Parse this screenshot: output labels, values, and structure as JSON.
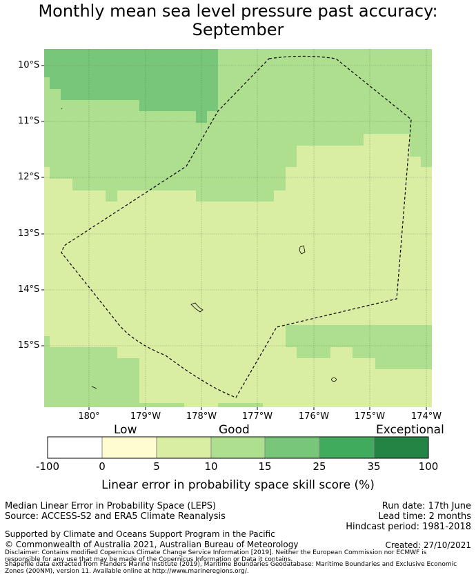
{
  "title_line1": "Monthly mean sea level pressure past accuracy:",
  "title_line2": "September",
  "map": {
    "lat_labels": [
      "10°S",
      "11°S",
      "12°S",
      "13°S",
      "14°S",
      "15°S"
    ],
    "lon_labels": [
      "180°",
      "179°W",
      "178°W",
      "177°W",
      "176°W",
      "175°W",
      "174°W"
    ],
    "category_colors": {
      "poor": "#ffffff",
      "low": "#fffdd0",
      "fair": "#d9edA3",
      "good": "#addf8f",
      "very_good": "#78c679",
      "high": "#41ab5d",
      "exceptional": "#238443"
    }
  },
  "colorbar": {
    "categories": [
      "Low",
      "Good",
      "Exceptional"
    ],
    "ticks": [
      "-100",
      "0",
      "5",
      "10",
      "15",
      "25",
      "35",
      "100"
    ],
    "colors": [
      "#ffffff",
      "#fffdd0",
      "#d9eda3",
      "#addf8f",
      "#78c679",
      "#41ab5d",
      "#238443"
    ],
    "label": "Linear error in probability space skill score (%)"
  },
  "info": {
    "method": "Median Linear Error in Probability Space (LEPS)",
    "source": "Source: ACCESS-S2 and ERA5 Climate Reanalysis",
    "run_date": "Run date: 17th June",
    "lead_time": "Lead time: 2 months",
    "hindcast": "Hindcast period: 1981-2018",
    "support": "Supported by Climate and Oceans Support Program in the Pacific",
    "copyright": "© Commonwealth of Australia 2021, Australian Bureau of Meteorology",
    "created": "Created: 27/10/2021",
    "disclaimer1": "Disclaimer: Contains modified Copernicus Climate Change Service Information [2019]. Neither the European Commission nor ECMWF is",
    "disclaimer2": "responsible for any use that may be made of the Copernicus Information or Data it contains.",
    "disclaimer3": "Shapefile data extracted from Flanders Marine Institute (2019), Maritime Boundaries Geodatabase: Maritime Boundaries and Exclusive Economic",
    "disclaimer4": "Zones (200NM), version 11. Available online at http://www.marineregions.org/."
  }
}
